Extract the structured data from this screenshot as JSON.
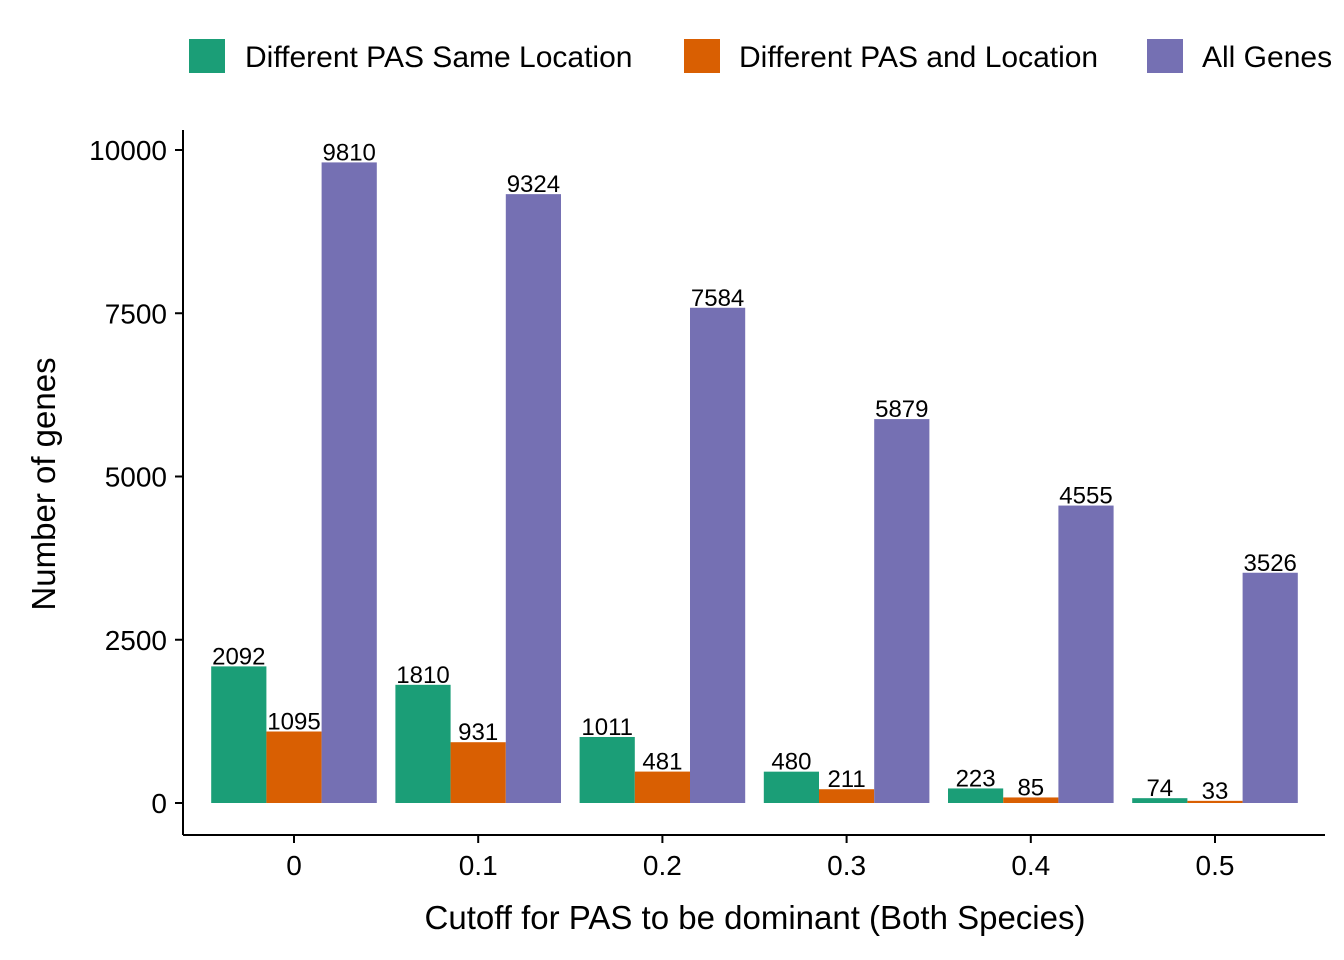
{
  "chart_data": {
    "type": "bar",
    "categories": [
      "0",
      "0.1",
      "0.2",
      "0.3",
      "0.4",
      "0.5"
    ],
    "series": [
      {
        "name": "Different PAS Same Location",
        "color": "#1B9E77",
        "values": [
          2092,
          1810,
          1011,
          480,
          223,
          74
        ]
      },
      {
        "name": "Different PAS and Location",
        "color": "#D95F02",
        "values": [
          1095,
          931,
          481,
          211,
          85,
          33
        ]
      },
      {
        "name": "All Genes",
        "color": "#7570B3",
        "values": [
          9810,
          9324,
          7584,
          5879,
          4555,
          3526
        ]
      }
    ],
    "data_labels": true,
    "xlabel": "Cutoff for PAS to be dominant (Both Species)",
    "ylabel": "Number of genes",
    "yticks": [
      0,
      2500,
      5000,
      7500,
      10000
    ],
    "ylim": [
      -500,
      10300
    ],
    "legend_position": "top",
    "grid": false
  }
}
